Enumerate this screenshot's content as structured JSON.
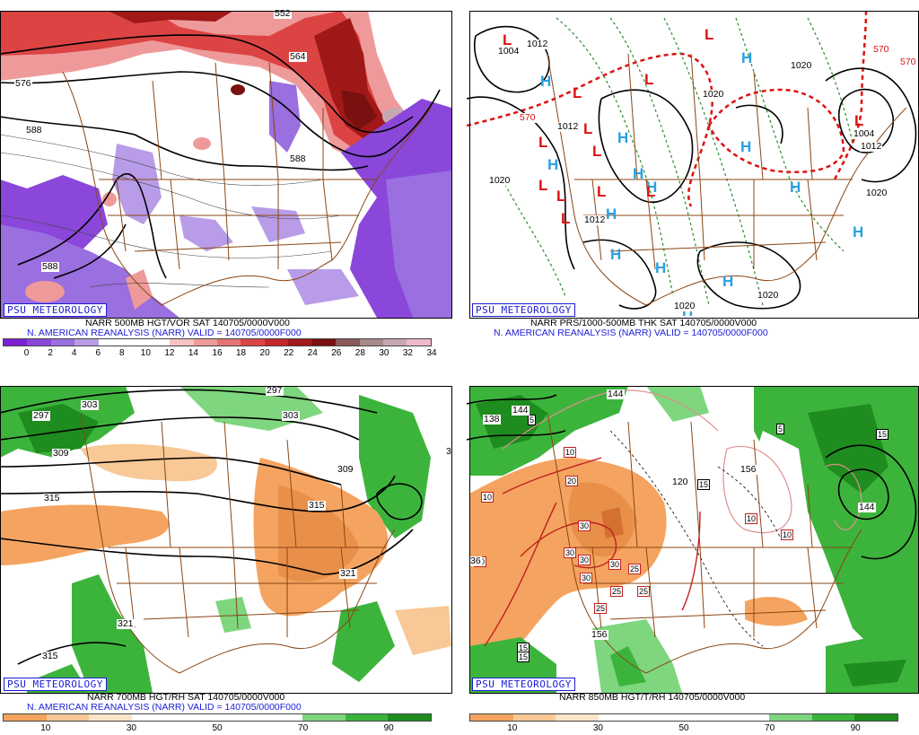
{
  "psu_label": "PSU METEOROLOGY",
  "panels": {
    "vort": {
      "caption1": "NARR 500MB HGT/VOR SAT 140705/0000V000",
      "caption2": "N. AMERICAN REANALYSIS (NARR) VALID = 140705/0000F000",
      "contour_labels": [
        "552",
        "564",
        "576",
        "588",
        "588",
        "588"
      ],
      "scale_ticks": [
        "0",
        "2",
        "4",
        "6",
        "8",
        "10",
        "12",
        "14",
        "16",
        "18",
        "20",
        "22",
        "24",
        "26",
        "28",
        "30",
        "32",
        "34"
      ],
      "scale_colors": [
        "#7b1fd6",
        "#8a47d9",
        "#9a6fe0",
        "#b89ce8",
        "#ffffff",
        "#ffffff",
        "#ffffff",
        "#f6c3c3",
        "#ef9a9a",
        "#e57373",
        "#dc4444",
        "#c62828",
        "#a01818",
        "#7a1010",
        "#8a5a5a",
        "#a88a8a",
        "#c8a8b0",
        "#f0b8c8"
      ]
    },
    "thk": {
      "caption1": "NARR PRS/1000-500MB THK SAT 140705/0000V000",
      "caption2": "N. AMERICAN REANALYSIS (NARR) VALID = 140705/0000F000",
      "pressure_labels": [
        "1004",
        "1012",
        "1020",
        "1020",
        "1020",
        "1012",
        "1020",
        "1020",
        "1012",
        "1012",
        "1004",
        "1020"
      ],
      "thickness_labels": [
        "570",
        "570",
        "570"
      ],
      "highs": [
        "H",
        "H",
        "H",
        "H",
        "H",
        "H",
        "H",
        "H",
        "H",
        "H",
        "H",
        "H",
        "H",
        "H"
      ],
      "lows": [
        "L",
        "L",
        "L",
        "L",
        "L",
        "L",
        "L",
        "L",
        "L",
        "L",
        "L",
        "L",
        "L"
      ]
    },
    "rh700": {
      "caption1": "NARR 700MB HGT/RH SAT 140705/0000V000",
      "caption2": "N. AMERICAN REANALYSIS (NARR) VALID = 140705/0000F000",
      "contour_labels": [
        "297",
        "297",
        "303",
        "303",
        "309",
        "309",
        "315",
        "315",
        "321",
        "321",
        "315",
        "3"
      ],
      "scale_ticks": [
        "10",
        "30",
        "50",
        "70",
        "90"
      ],
      "scale_colors": [
        "#f4a460",
        "#f8c896",
        "#fce4c8",
        "#ffffff",
        "#ffffff",
        "#ffffff",
        "#ffffff",
        "#7ed67e",
        "#3cb43c",
        "#1e8c1e"
      ]
    },
    "t850": {
      "caption1": "NARR 850MB HGT/T/RH 140705/0000V000",
      "scale_ticks": [
        "10",
        "30",
        "50",
        "70",
        "90"
      ],
      "scale_colors": [
        "#f4a460",
        "#f8c896",
        "#fce4c8",
        "#ffffff",
        "#ffffff",
        "#ffffff",
        "#ffffff",
        "#7ed67e",
        "#3cb43c",
        "#1e8c1e"
      ],
      "height_labels": [
        "144",
        "144",
        "138",
        "120",
        "156",
        "144",
        "156",
        "36"
      ],
      "temp_boxes": [
        "5",
        "5",
        "15",
        "15",
        "15",
        "15",
        "10",
        "10",
        "10",
        "10",
        "20",
        "30",
        "30",
        "30",
        "30",
        "30",
        "25",
        "25",
        "25",
        "25",
        "10"
      ]
    }
  }
}
